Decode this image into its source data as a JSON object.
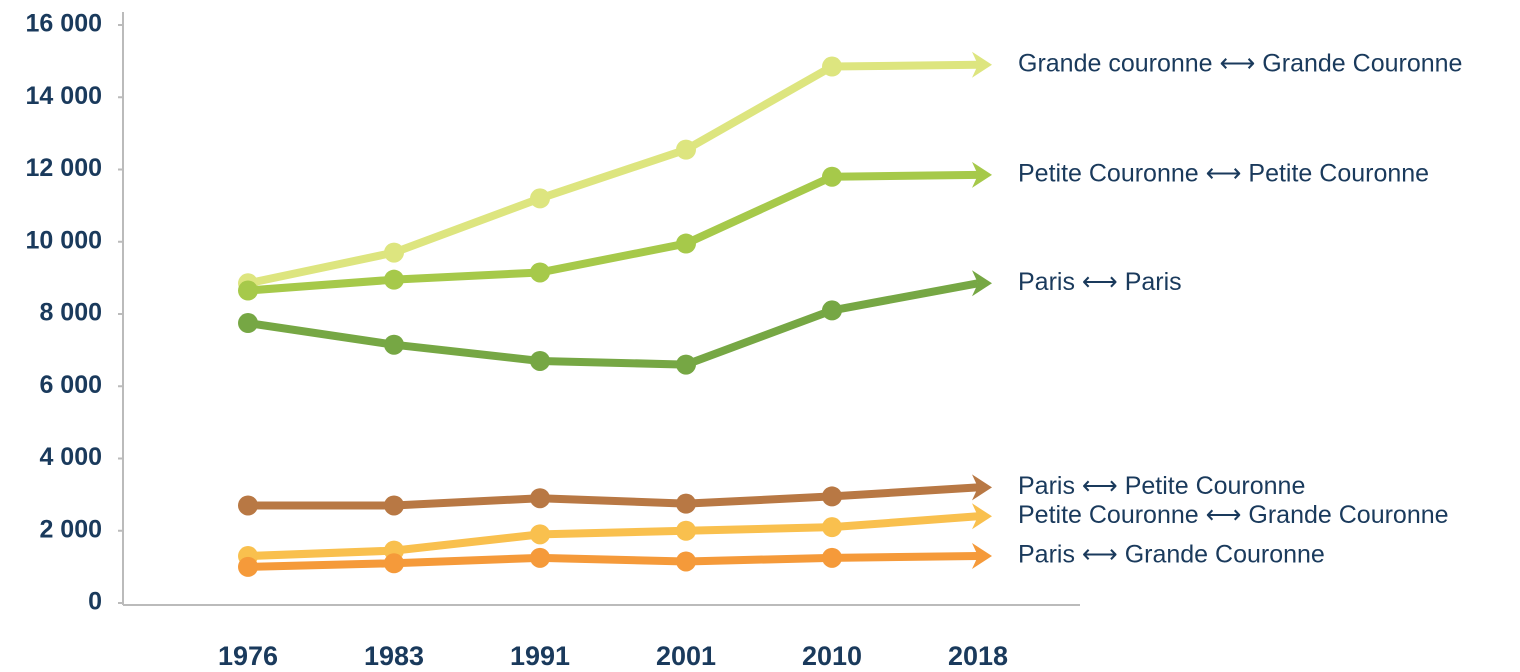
{
  "chart_data": {
    "type": "line",
    "categories": [
      "1976",
      "1983",
      "1991",
      "2001",
      "2010",
      "2018"
    ],
    "series": [
      {
        "name": "Grande couronne ⟷ Grande Couronne",
        "color": "#dde57f",
        "values": [
          8850,
          9700,
          11200,
          12550,
          14850,
          14900
        ]
      },
      {
        "name": "Petite Couronne ⟷ Petite Couronne",
        "color": "#a6c94a",
        "values": [
          8650,
          8950,
          9150,
          9950,
          11800,
          11850
        ]
      },
      {
        "name": "Paris ⟷ Paris",
        "color": "#76a744",
        "values": [
          7750,
          7150,
          6700,
          6600,
          8100,
          8850
        ]
      },
      {
        "name": "Paris ⟷ Petite Couronne",
        "color": "#b87844",
        "values": [
          2700,
          2700,
          2900,
          2750,
          2950,
          3200
        ]
      },
      {
        "name": "Petite Couronne ⟷ Grande Couronne",
        "color": "#f9c04e",
        "values": [
          1300,
          1450,
          1900,
          2000,
          2100,
          2400
        ]
      },
      {
        "name": "Paris ⟷ Grande Couronne",
        "color": "#f59a3a",
        "values": [
          1000,
          1100,
          1250,
          1150,
          1250,
          1300
        ]
      }
    ],
    "ylim": [
      0,
      16000
    ],
    "yticks": [
      0,
      {
        "value": 2000,
        "label": "2 000"
      },
      {
        "value": 4000,
        "label": "4 000"
      },
      {
        "value": 6000,
        "label": "6 000"
      },
      {
        "value": 8000,
        "label": "8 000"
      },
      {
        "value": 10000,
        "label": "10 000"
      },
      {
        "value": 12000,
        "label": "12 000"
      },
      {
        "value": 14000,
        "label": "14 000"
      },
      {
        "value": 16000,
        "label": "16 000"
      }
    ]
  }
}
